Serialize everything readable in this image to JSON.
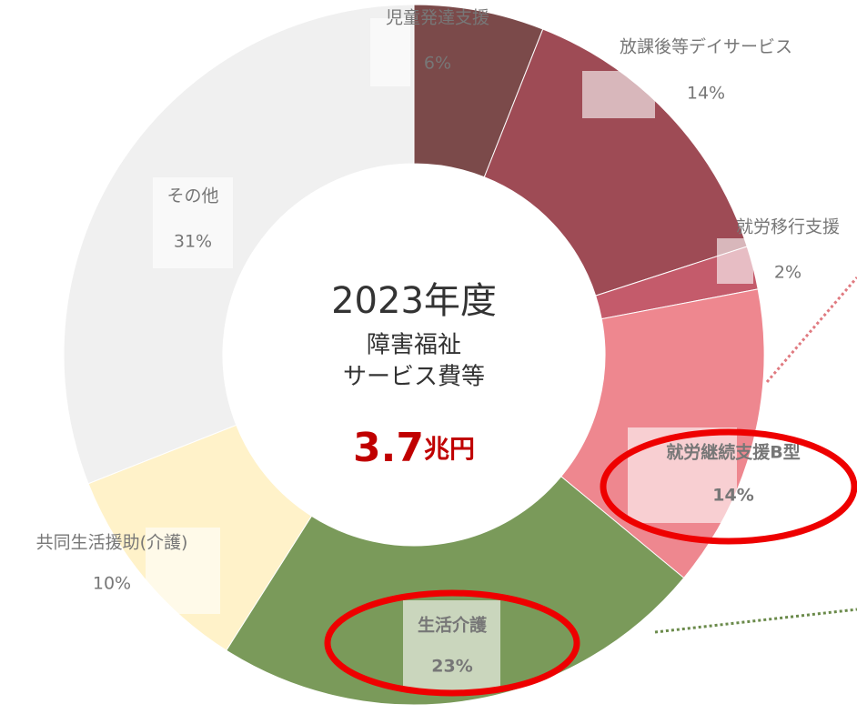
{
  "chart_data": {
    "type": "pie",
    "donut": true,
    "categories": [
      "児童発達支援",
      "放課後等デイサービス",
      "就労移行支援",
      "就労継続支援B型",
      "生活介護",
      "共同生活援助(介護)",
      "その他"
    ],
    "values": [
      6,
      14,
      2,
      14,
      23,
      10,
      31
    ],
    "value_labels": [
      "6%",
      "14%",
      "2%",
      "14%",
      "23%",
      "10%",
      "31%"
    ],
    "colors": [
      "#7b4a4a",
      "#9e4b55",
      "#c45b6b",
      "#ee878f",
      "#7a9a5a",
      "#fff2c9",
      "#f0f0f0"
    ],
    "center": {
      "year": "2023年度",
      "line1": "障害福祉",
      "line2": "サービス費等",
      "amount": "3.7",
      "unit": "兆円"
    }
  }
}
